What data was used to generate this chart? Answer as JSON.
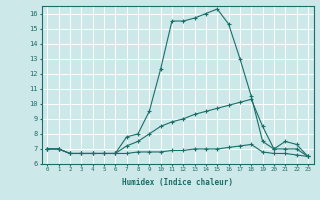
{
  "x": [
    0,
    1,
    2,
    3,
    4,
    5,
    6,
    7,
    8,
    9,
    10,
    11,
    12,
    13,
    14,
    15,
    16,
    17,
    18,
    19,
    20,
    21,
    22,
    23
  ],
  "line1": [
    7.0,
    7.0,
    6.7,
    6.7,
    6.7,
    6.7,
    6.7,
    7.8,
    8.0,
    9.5,
    12.3,
    15.5,
    15.5,
    15.7,
    16.0,
    16.3,
    15.3,
    13.0,
    10.5,
    7.5,
    7.0,
    7.5,
    7.3,
    6.5
  ],
  "line2": [
    7.0,
    7.0,
    6.7,
    6.7,
    6.7,
    6.7,
    6.7,
    7.2,
    7.5,
    8.0,
    8.5,
    8.8,
    9.0,
    9.3,
    9.5,
    9.7,
    9.9,
    10.1,
    10.3,
    8.5,
    7.0,
    7.0,
    7.0,
    6.5
  ],
  "line3": [
    7.0,
    7.0,
    6.7,
    6.7,
    6.7,
    6.7,
    6.7,
    6.7,
    6.8,
    6.8,
    6.8,
    6.9,
    6.9,
    7.0,
    7.0,
    7.0,
    7.1,
    7.2,
    7.3,
    6.8,
    6.7,
    6.7,
    6.6,
    6.5
  ],
  "bg_color": "#cde8e8",
  "grid_color": "#ffffff",
  "line_color": "#1a6e6a",
  "marker": "+",
  "xlabel": "Humidex (Indice chaleur)",
  "ylim": [
    6.0,
    16.5
  ],
  "xlim": [
    -0.5,
    23.5
  ],
  "yticks": [
    6,
    7,
    8,
    9,
    10,
    11,
    12,
    13,
    14,
    15,
    16
  ],
  "xticks": [
    0,
    1,
    2,
    3,
    4,
    5,
    6,
    7,
    8,
    9,
    10,
    11,
    12,
    13,
    14,
    15,
    16,
    17,
    18,
    19,
    20,
    21,
    22,
    23
  ],
  "font_color": "#1a6e6a"
}
